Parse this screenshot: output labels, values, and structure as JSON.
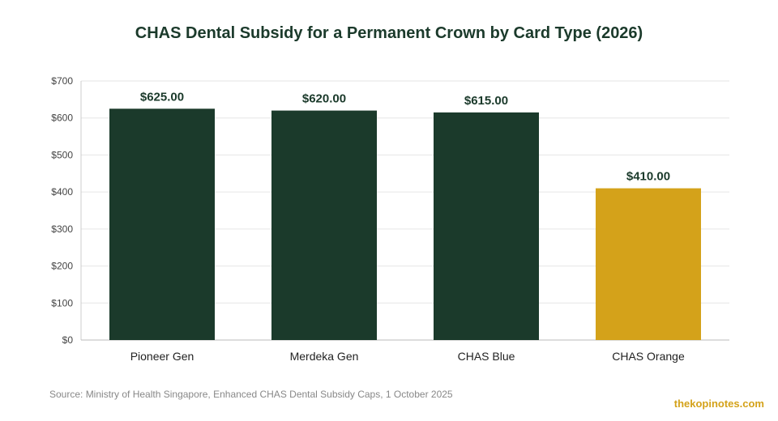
{
  "chart_data": {
    "type": "bar",
    "title": "CHAS Dental Subsidy for a Permanent Crown by Card Type (2026)",
    "categories": [
      "Pioneer Gen",
      "Merdeka Gen",
      "CHAS Blue",
      "CHAS Orange"
    ],
    "values": [
      625,
      620,
      615,
      410
    ],
    "data_labels": [
      "$625.00",
      "$620.00",
      "$615.00",
      "$410.00"
    ],
    "bar_colors": [
      "#1b3a2b",
      "#1b3a2b",
      "#1b3a2b",
      "#d4a21a"
    ],
    "ylim": [
      0,
      700
    ],
    "yticks": [
      0,
      100,
      200,
      300,
      400,
      500,
      600,
      700
    ],
    "ytick_labels": [
      "$0",
      "$100",
      "$200",
      "$300",
      "$400",
      "$500",
      "$600",
      "$700"
    ],
    "xlabel": "",
    "ylabel": "",
    "grid": true,
    "legend": "none"
  },
  "footer": {
    "source": "Source: Ministry of Health Singapore, Enhanced CHAS Dental Subsidy Caps, 1 October 2025",
    "brand": "thekopinotes.com"
  },
  "colors": {
    "title": "#1b3a2b",
    "axis_text": "#444444",
    "gridline": "#e6e6e6",
    "brand": "#d4a21a"
  }
}
